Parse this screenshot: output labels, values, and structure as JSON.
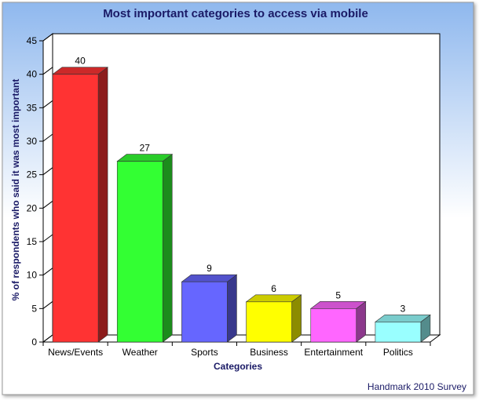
{
  "chart_data": {
    "type": "bar",
    "title": "Most important categories to access via mobile",
    "xlabel": "Categories",
    "ylabel": "% of respondents who said it was most important",
    "categories": [
      "News/Events",
      "Weather",
      "Sports",
      "Business",
      "Entertainment",
      "Politics"
    ],
    "values": [
      40,
      27,
      9,
      6,
      5,
      3
    ],
    "data_labels": [
      "40",
      "27",
      "9",
      "6",
      "5",
      "3"
    ],
    "ylim": [
      0,
      45
    ],
    "yticks": [
      "0",
      "5",
      "10",
      "15",
      "20",
      "25",
      "30",
      "35",
      "40",
      "45"
    ],
    "grid": false,
    "legend": "none",
    "bar_colors": [
      "#ff3333",
      "#33ff33",
      "#6666ff",
      "#ffff00",
      "#ff66ff",
      "#99ffff"
    ],
    "source_note": "Handmark 2010 Survey"
  },
  "colors": {
    "title": "#1a1a66",
    "axis_label": "#1a1a66",
    "background_top": "#8fb8ee",
    "background_bottom": "#ffffff"
  }
}
